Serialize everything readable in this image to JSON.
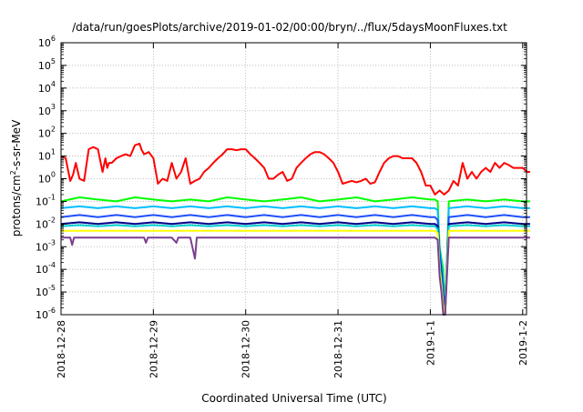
{
  "chart_data": {
    "type": "line",
    "title": "/data/run/goesPlots/archive/2019-01-02/00:00/bryn/../flux/5daysMoonFluxes.txt",
    "xlabel": "Coordinated Universal Time (UTC)",
    "ylabel_parts": [
      "protons/cm",
      "2",
      "-s-sr-MeV"
    ],
    "y_scale": "log",
    "ylim": [
      1e-06,
      1000000.0
    ],
    "xlim": [
      "2018-12-28",
      "2019-01-02 01:00"
    ],
    "grid": true,
    "legend": "none",
    "x_ticks": [
      {
        "value": "2018-12-28",
        "label": "2018-12-28"
      },
      {
        "value": "2018-12-29",
        "label": "2018-12-29"
      },
      {
        "value": "2018-12-30",
        "label": "2018-12-30"
      },
      {
        "value": "2018-12-31",
        "label": "2018-12-31"
      },
      {
        "value": "2019-01-01",
        "label": "2019-1-1"
      },
      {
        "value": "2019-01-02",
        "label": "2019-1-2"
      }
    ],
    "y_ticks": [
      {
        "exp": "-6",
        "label": "10"
      },
      {
        "exp": "-5",
        "label": "10"
      },
      {
        "exp": "-4",
        "label": "10"
      },
      {
        "exp": "-3",
        "label": "10"
      },
      {
        "exp": "-2",
        "label": "10"
      },
      {
        "exp": "-1",
        "label": "10"
      },
      {
        "exp": "0",
        "label": "10"
      },
      {
        "exp": "1",
        "label": "10"
      },
      {
        "exp": "2",
        "label": "10"
      },
      {
        "exp": "3",
        "label": "10"
      },
      {
        "exp": "4",
        "label": "10"
      },
      {
        "exp": "5",
        "label": "10"
      },
      {
        "exp": "6",
        "label": "10"
      }
    ],
    "series": [
      {
        "color": "#ff0000",
        "x_days": [
          0.0,
          0.05,
          0.1,
          0.13,
          0.16,
          0.2,
          0.25,
          0.3,
          0.35,
          0.4,
          0.45,
          0.48,
          0.5,
          0.52,
          0.55,
          0.6,
          0.65,
          0.7,
          0.75,
          0.8,
          0.85,
          0.87,
          0.9,
          0.95,
          1.0,
          1.05,
          1.1,
          1.15,
          1.2,
          1.25,
          1.3,
          1.35,
          1.4,
          1.45,
          1.5,
          1.55,
          1.6,
          1.65,
          1.7,
          1.75,
          1.8,
          1.85,
          1.9,
          1.95,
          2.0,
          2.05,
          2.1,
          2.15,
          2.2,
          2.25,
          2.3,
          2.35,
          2.4,
          2.45,
          2.5,
          2.55,
          2.6,
          2.65,
          2.7,
          2.75,
          2.8,
          2.85,
          2.9,
          2.95,
          3.0,
          3.05,
          3.1,
          3.15,
          3.2,
          3.25,
          3.3,
          3.35,
          3.4,
          3.45,
          3.5,
          3.55,
          3.6,
          3.65,
          3.7,
          3.75,
          3.8,
          3.85,
          3.9,
          3.95,
          4.0,
          4.05,
          4.1,
          4.15,
          4.2,
          4.25,
          4.3,
          4.35,
          4.4,
          4.45,
          4.5,
          4.55,
          4.6,
          4.65,
          4.7,
          4.75,
          4.8,
          4.85,
          4.9,
          4.95,
          5.0,
          5.05,
          5.08
        ],
        "y": [
          10,
          8,
          0.8,
          1.5,
          5,
          1,
          0.8,
          20,
          25,
          20,
          2,
          8,
          3,
          5,
          5,
          8,
          10,
          12,
          10,
          30,
          35,
          20,
          12,
          15,
          8,
          0.6,
          1,
          0.8,
          5,
          1,
          2,
          8,
          0.6,
          0.8,
          1,
          2,
          3,
          5,
          8,
          12,
          20,
          20,
          18,
          20,
          20,
          12,
          8,
          5,
          3,
          1,
          1,
          1.5,
          2,
          0.8,
          1,
          3,
          5,
          8,
          12,
          15,
          15,
          12,
          8,
          5,
          2,
          0.6,
          0.7,
          0.8,
          0.7,
          0.8,
          1,
          0.6,
          0.7,
          2,
          5,
          8,
          10,
          10,
          8,
          8,
          8,
          5,
          2,
          0.5,
          0.5,
          0.2,
          0.3,
          0.2,
          0.3,
          0.8,
          0.5,
          5,
          1,
          2,
          1,
          2,
          3,
          2,
          5,
          3,
          5,
          4,
          3,
          3,
          3,
          2,
          2
        ]
      },
      {
        "color": "#00ff00",
        "x_days": [
          0.0,
          0.2,
          0.4,
          0.6,
          0.8,
          1.0,
          1.2,
          1.4,
          1.6,
          1.8,
          2.0,
          2.2,
          2.4,
          2.6,
          2.8,
          3.0,
          3.2,
          3.4,
          3.6,
          3.8,
          4.0,
          4.05,
          4.08,
          4.1,
          4.12,
          4.14,
          4.16,
          4.2,
          4.4,
          4.6,
          4.8,
          5.0,
          5.08
        ],
        "y": [
          0.1,
          0.15,
          0.12,
          0.1,
          0.15,
          0.12,
          0.1,
          0.12,
          0.1,
          0.15,
          0.12,
          0.1,
          0.12,
          0.15,
          0.1,
          0.12,
          0.15,
          0.1,
          0.12,
          0.15,
          0.12,
          0.12,
          0.1,
          0.001,
          0.0003,
          0.0001,
          1e-06,
          0.1,
          0.12,
          0.1,
          0.12,
          0.1,
          0.1
        ]
      },
      {
        "color": "#00bfff",
        "x_days": [
          0.0,
          0.2,
          0.4,
          0.6,
          0.8,
          1.0,
          1.2,
          1.4,
          1.6,
          1.8,
          2.0,
          2.2,
          2.4,
          2.6,
          2.8,
          3.0,
          3.2,
          3.4,
          3.6,
          3.8,
          4.0,
          4.05,
          4.08,
          4.1,
          4.12,
          4.14,
          4.16,
          4.2,
          4.4,
          4.6,
          4.8,
          5.0,
          5.08
        ],
        "y": [
          0.05,
          0.06,
          0.05,
          0.06,
          0.05,
          0.06,
          0.05,
          0.06,
          0.05,
          0.06,
          0.05,
          0.06,
          0.05,
          0.06,
          0.05,
          0.06,
          0.05,
          0.06,
          0.05,
          0.06,
          0.05,
          0.05,
          0.04,
          0.0008,
          0.0002,
          3e-05,
          1e-06,
          0.05,
          0.06,
          0.05,
          0.06,
          0.05,
          0.05
        ]
      },
      {
        "color": "#1e50ff",
        "x_days": [
          0.0,
          0.2,
          0.4,
          0.6,
          0.8,
          1.0,
          1.2,
          1.4,
          1.6,
          1.8,
          2.0,
          2.2,
          2.4,
          2.6,
          2.8,
          3.0,
          3.2,
          3.4,
          3.6,
          3.8,
          4.0,
          4.05,
          4.08,
          4.1,
          4.12,
          4.14,
          4.16,
          4.2,
          4.4,
          4.6,
          4.8,
          5.0,
          5.08
        ],
        "y": [
          0.02,
          0.025,
          0.02,
          0.025,
          0.02,
          0.025,
          0.02,
          0.025,
          0.02,
          0.025,
          0.02,
          0.025,
          0.02,
          0.025,
          0.02,
          0.025,
          0.02,
          0.025,
          0.02,
          0.025,
          0.02,
          0.02,
          0.015,
          0.0005,
          0.0001,
          1e-05,
          1e-06,
          0.02,
          0.025,
          0.02,
          0.025,
          0.02,
          0.02
        ]
      },
      {
        "color": "#00008b",
        "x_days": [
          0.0,
          0.2,
          0.4,
          0.6,
          0.8,
          1.0,
          1.2,
          1.4,
          1.6,
          1.8,
          2.0,
          2.2,
          2.4,
          2.6,
          2.8,
          3.0,
          3.2,
          3.4,
          3.6,
          3.8,
          4.0,
          4.05,
          4.08,
          4.1,
          4.12,
          4.14,
          4.16,
          4.2,
          4.4,
          4.6,
          4.8,
          5.0,
          5.08
        ],
        "y": [
          0.01,
          0.012,
          0.01,
          0.012,
          0.01,
          0.012,
          0.01,
          0.012,
          0.01,
          0.012,
          0.01,
          0.012,
          0.01,
          0.012,
          0.01,
          0.012,
          0.01,
          0.012,
          0.01,
          0.012,
          0.01,
          0.01,
          0.008,
          0.0003,
          5e-05,
          5e-06,
          1e-06,
          0.01,
          0.012,
          0.01,
          0.012,
          0.01,
          0.01
        ]
      },
      {
        "color": "#00ced1",
        "x_days": [
          0.0,
          0.2,
          0.4,
          0.6,
          0.8,
          1.0,
          1.2,
          1.4,
          1.6,
          1.8,
          2.0,
          2.2,
          2.4,
          2.6,
          2.8,
          3.0,
          3.2,
          3.4,
          3.6,
          3.8,
          4.0,
          4.05,
          4.08,
          4.1,
          4.12,
          4.14,
          4.16,
          4.2,
          4.4,
          4.6,
          4.8,
          5.0,
          5.08
        ],
        "y": [
          0.008,
          0.009,
          0.008,
          0.009,
          0.008,
          0.009,
          0.008,
          0.009,
          0.008,
          0.009,
          0.008,
          0.009,
          0.008,
          0.009,
          0.008,
          0.009,
          0.008,
          0.009,
          0.008,
          0.009,
          0.008,
          0.008,
          0.006,
          0.0002,
          3e-05,
          3e-06,
          1e-06,
          0.008,
          0.009,
          0.008,
          0.009,
          0.008,
          0.008
        ]
      },
      {
        "color": "#ffff00",
        "x_days": [
          0.0,
          0.2,
          0.4,
          0.6,
          0.8,
          1.0,
          1.2,
          1.4,
          1.6,
          1.8,
          2.0,
          2.2,
          2.4,
          2.6,
          2.8,
          3.0,
          3.2,
          3.4,
          3.6,
          3.8,
          4.0,
          4.05,
          4.08,
          4.1,
          4.12,
          4.14,
          4.16,
          4.2,
          4.4,
          4.6,
          4.8,
          5.0,
          5.08
        ],
        "y": [
          0.005,
          0.005,
          0.005,
          0.005,
          0.005,
          0.005,
          0.005,
          0.005,
          0.005,
          0.005,
          0.005,
          0.005,
          0.005,
          0.005,
          0.005,
          0.005,
          0.005,
          0.005,
          0.005,
          0.005,
          0.005,
          0.005,
          0.004,
          0.0001,
          2e-05,
          2e-06,
          1e-06,
          0.005,
          0.005,
          0.005,
          0.005,
          0.005,
          0.005
        ]
      },
      {
        "color": "#7b3f8f",
        "x_days": [
          0.0,
          0.1,
          0.12,
          0.14,
          0.2,
          0.4,
          0.6,
          0.8,
          0.9,
          0.92,
          0.94,
          1.0,
          1.2,
          1.25,
          1.27,
          1.4,
          1.45,
          1.47,
          1.49,
          1.6,
          1.8,
          2.0,
          2.2,
          2.4,
          2.6,
          2.8,
          3.0,
          3.2,
          3.4,
          3.6,
          3.8,
          4.0,
          4.05,
          4.08,
          4.1,
          4.12,
          4.14,
          4.16,
          4.2,
          4.4,
          4.6,
          4.8,
          5.0,
          5.08
        ],
        "y": [
          0.0025,
          0.0025,
          0.0012,
          0.0025,
          0.0025,
          0.0025,
          0.0025,
          0.0025,
          0.0025,
          0.0015,
          0.0025,
          0.0025,
          0.0025,
          0.0015,
          0.0025,
          0.0025,
          0.0003,
          0.0025,
          0.0025,
          0.0025,
          0.0025,
          0.0025,
          0.0025,
          0.0025,
          0.0025,
          0.0025,
          0.0025,
          0.0025,
          0.0025,
          0.0025,
          0.0025,
          0.0025,
          0.0025,
          0.002,
          5e-05,
          1e-05,
          1e-06,
          1e-06,
          0.0025,
          0.0025,
          0.0025,
          0.0025,
          0.0025,
          0.0025
        ]
      }
    ]
  }
}
